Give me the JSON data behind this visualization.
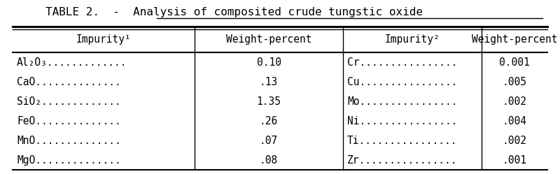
{
  "title": "TABLE 2.  -  Analysis of composited crude tungstic oxide",
  "underline_text": "Analysis of composited crude tungstic oxide",
  "headers": [
    "Impurity¹",
    "Weight-percent",
    "Impurity²",
    "Weight-percent"
  ],
  "left_impurities": [
    "Al₂O₃.............",
    "CaO..............",
    "SiO₂.............",
    "FeO..............",
    "MnO..............",
    "MgO.............."
  ],
  "left_values": [
    "0.10",
    ".13",
    "1.35",
    ".26",
    ".07",
    ".08"
  ],
  "right_impurities": [
    "Cr................",
    "Cu................",
    "Mo................",
    "Ni................",
    "Ti................",
    "Zr................"
  ],
  "right_values": [
    "0.001",
    ".005",
    ".002",
    ".004",
    ".002",
    ".001"
  ],
  "bg_color": "#ffffff",
  "font_family": "monospace",
  "font_size": 10.5,
  "title_font_size": 11.5
}
